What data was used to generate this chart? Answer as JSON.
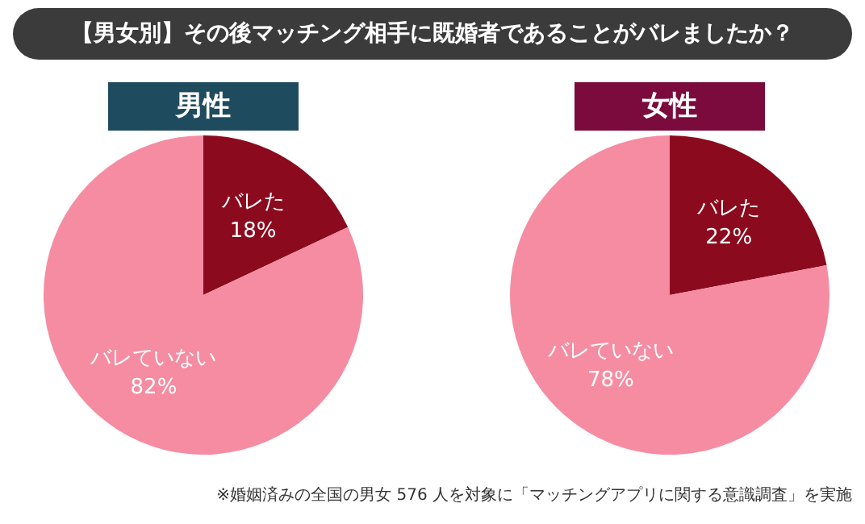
{
  "chart_data": [
    {
      "type": "pie",
      "title": "【男女別】その後マッチング相手に既婚者であることがバレましたか？",
      "subtitle": "男性",
      "categories": [
        "バレた",
        "バレていない"
      ],
      "values": [
        18,
        82
      ],
      "colors": [
        "#8c0a1e",
        "#f58ca2"
      ],
      "value_labels": [
        "18%",
        "82%"
      ],
      "legend": false
    },
    {
      "type": "pie",
      "subtitle": "女性",
      "categories": [
        "バレた",
        "バレていない"
      ],
      "values": [
        22,
        78
      ],
      "colors": [
        "#8c0a1e",
        "#f58ca2"
      ],
      "value_labels": [
        "22%",
        "78%"
      ],
      "legend": false,
      "annotations": [
        "※婚姻済みの全国の男女 576 人を対象に「マッチングアプリに関する意識調査」を実施"
      ]
    }
  ]
}
